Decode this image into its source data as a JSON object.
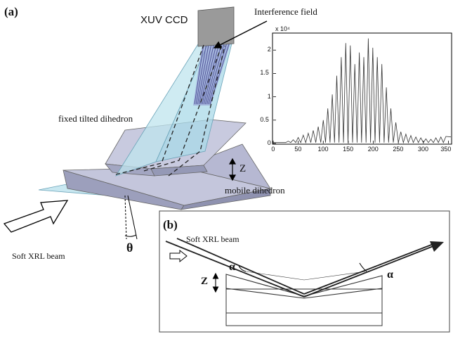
{
  "panel_a": {
    "tag": "(a)",
    "labels": {
      "detector": "XUV CCD",
      "interference": "Interference field",
      "fixed": "fixed tilted dihedron",
      "mobile": "mobile dihedron",
      "z_axis": "Z",
      "beam": "Soft XRL beam",
      "tilt_angle": "θ"
    }
  },
  "panel_b": {
    "tag": "(b)",
    "labels": {
      "beam": "Soft XRL beam",
      "z_axis": "Z",
      "alpha_left": "α",
      "alpha_right": "α"
    }
  },
  "colors": {
    "cyan_sheet": "#bfe4ee",
    "dihedron": "#c4c6dc",
    "dihedron_dark": "#9c9fbc",
    "ccd": "#9a9a9a",
    "fringes": "#5c5ca0"
  },
  "chart_data": {
    "type": "line",
    "title": "",
    "xlabel": "",
    "ylabel": "",
    "exponent_label": "x 10⁴",
    "xlim": [
      0,
      355
    ],
    "ylim": [
      0,
      2.35
    ],
    "xticks": [
      0,
      50,
      100,
      150,
      200,
      250,
      300,
      350
    ],
    "yticks": [
      0,
      0.5,
      1,
      1.5,
      2
    ],
    "x_tick_labels": [
      "0",
      "50",
      "100",
      "150",
      "200",
      "250",
      "300",
      "350"
    ],
    "y_tick_labels": [
      "0",
      "0.5",
      "1",
      "1.5",
      "2"
    ],
    "grid": false,
    "fringe_peaks": {
      "x": [
        30,
        40,
        50,
        60,
        70,
        80,
        90,
        100,
        109,
        118,
        127,
        136,
        145,
        154,
        163,
        172,
        181,
        190,
        199,
        208,
        217,
        226,
        235,
        245,
        255,
        265,
        275,
        285,
        295,
        305,
        315,
        325,
        335,
        345
      ],
      "y": [
        0.05,
        0.08,
        0.13,
        0.18,
        0.22,
        0.28,
        0.36,
        0.5,
        0.75,
        1.05,
        1.45,
        1.85,
        2.15,
        2.1,
        1.7,
        1.95,
        1.85,
        2.25,
        2.05,
        1.85,
        1.7,
        1.2,
        0.75,
        0.45,
        0.25,
        0.2,
        0.17,
        0.14,
        0.12,
        0.1,
        0.09,
        0.12,
        0.14,
        0.15
      ]
    },
    "baseline": 0.02
  }
}
